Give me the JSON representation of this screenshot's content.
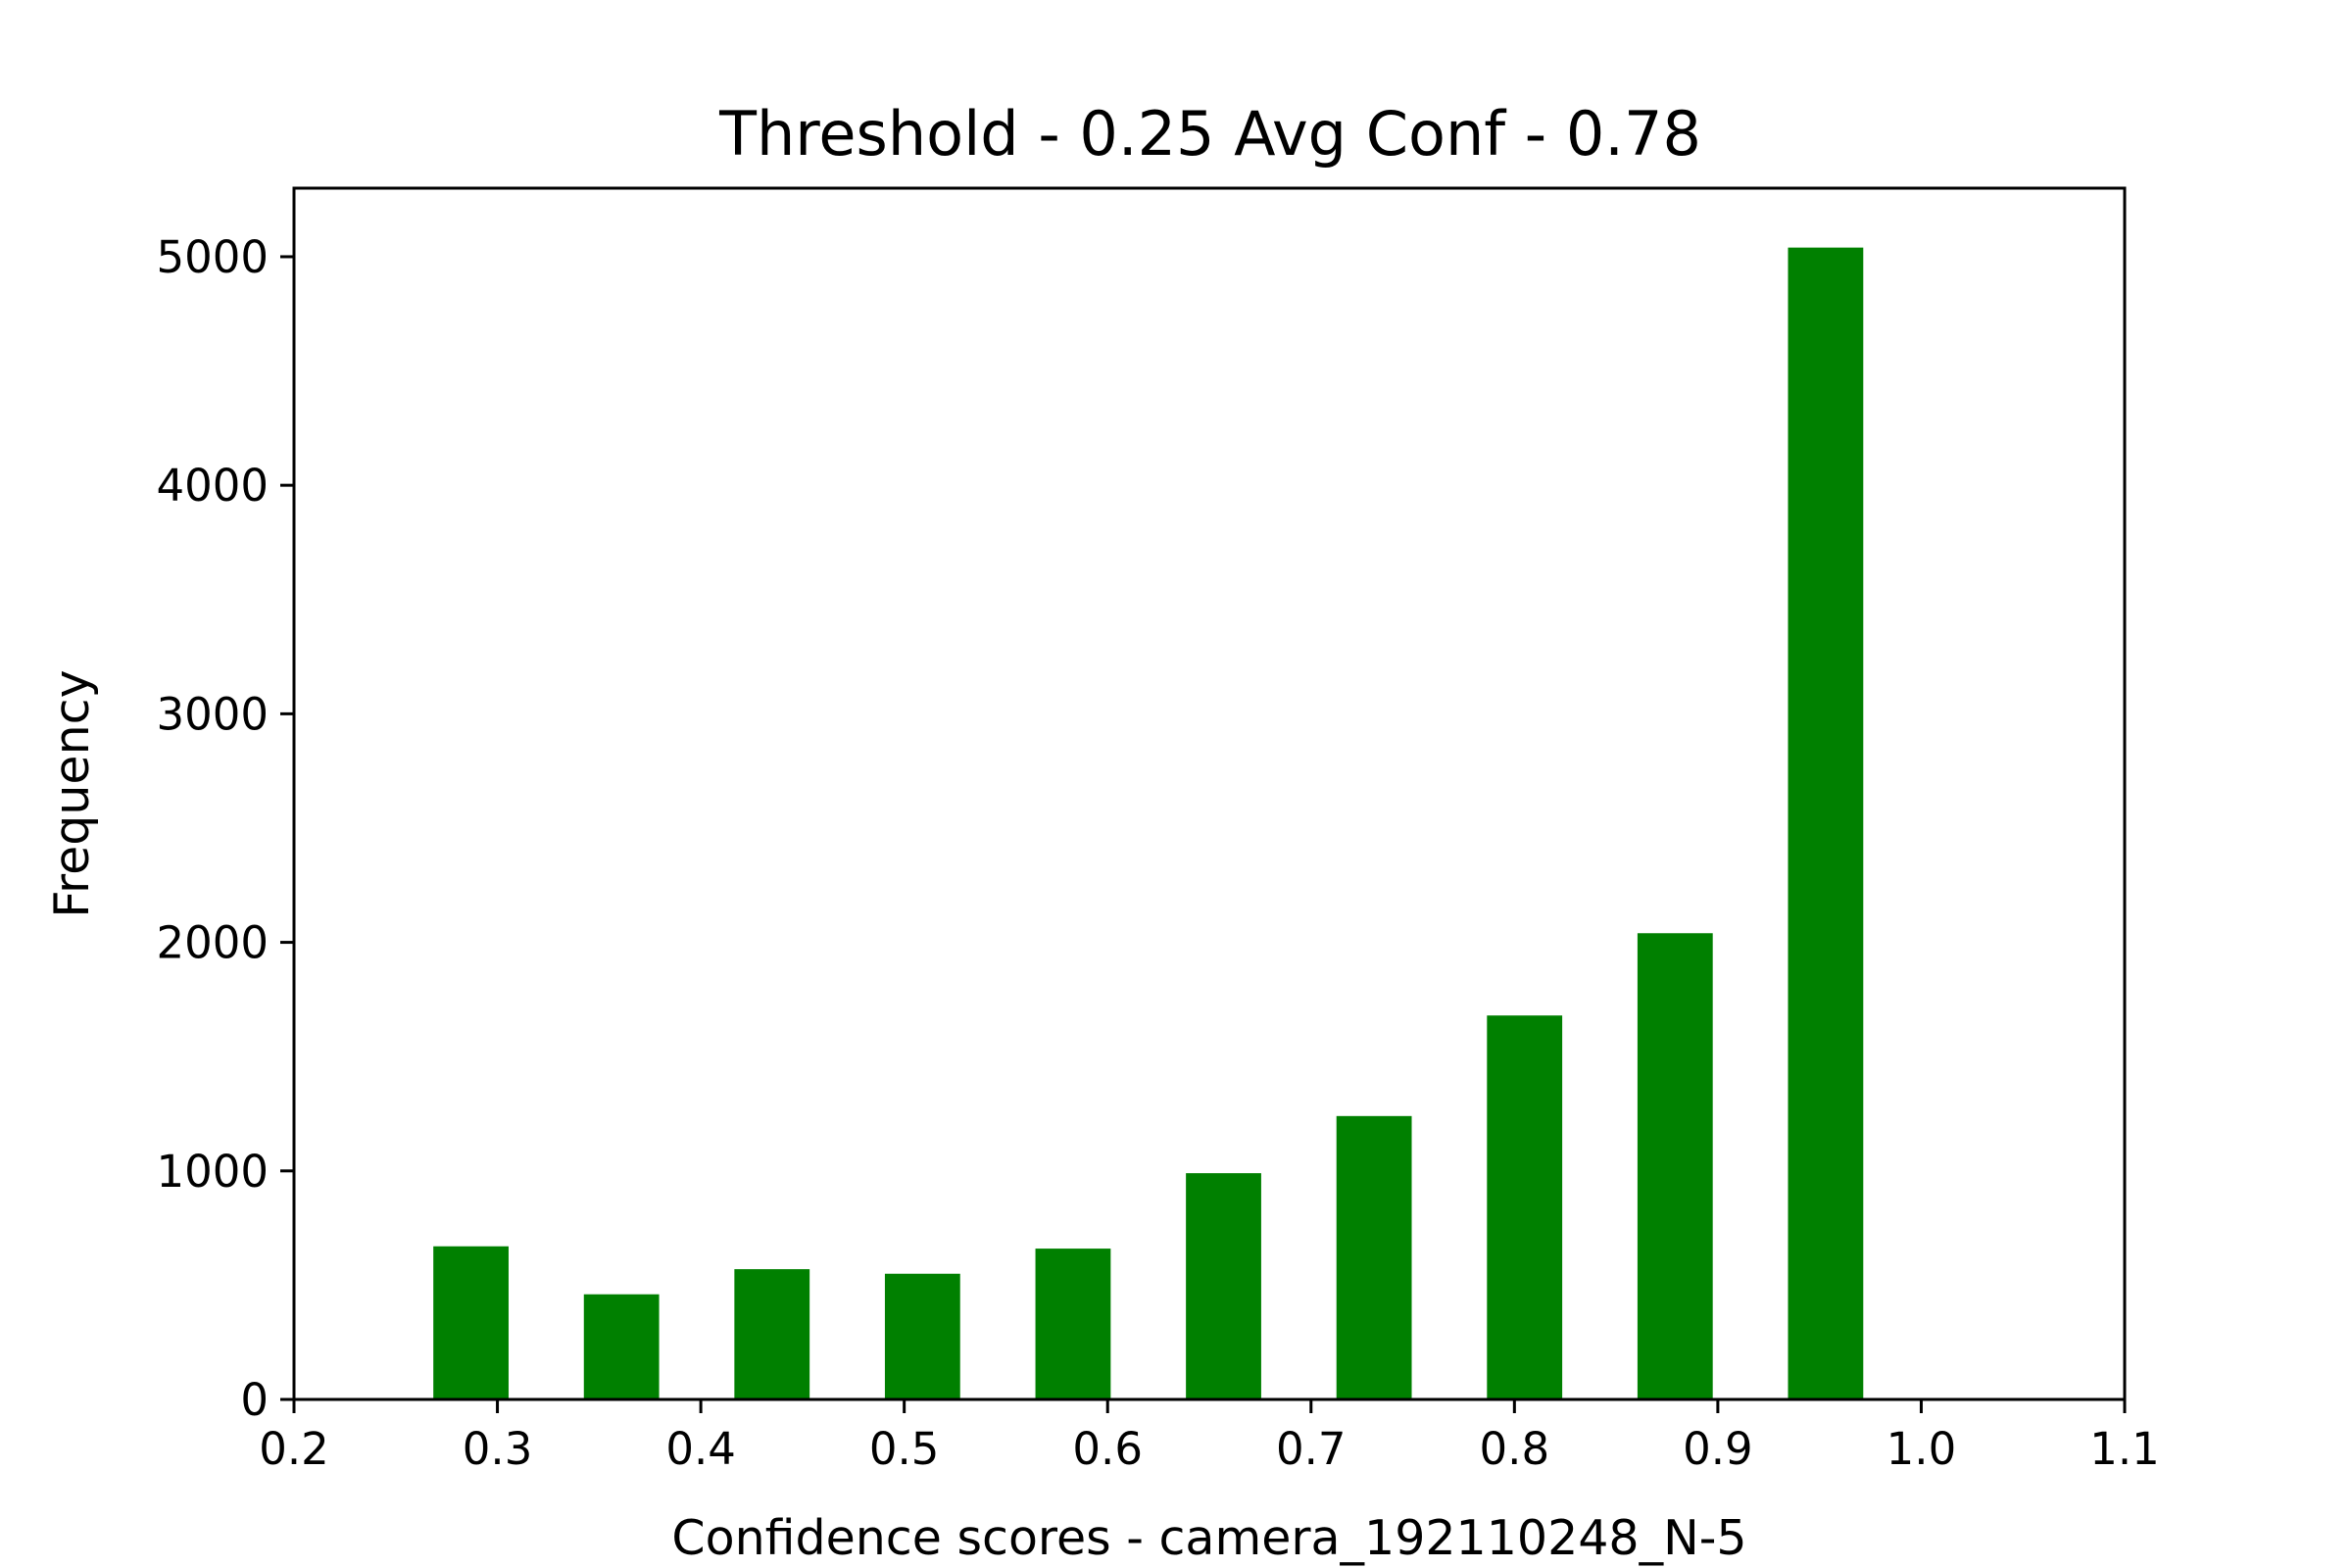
{
  "chart_data": {
    "type": "bar",
    "title": "Threshold - 0.25 Avg Conf - 0.78",
    "xlabel": "Confidence scores - camera_192110248_N-5",
    "ylabel": "Frequency",
    "xlim": [
      0.2,
      1.1
    ],
    "ylim": [
      0,
      5300
    ],
    "bar_color": "#008000",
    "bar_width": 0.037,
    "x_ticks": [
      "0.2",
      "0.3",
      "0.4",
      "0.5",
      "0.6",
      "0.7",
      "0.8",
      "0.9",
      "1.0",
      "1.1"
    ],
    "y_ticks": [
      "0",
      "1000",
      "2000",
      "3000",
      "4000",
      "5000"
    ],
    "x": [
      0.287,
      0.361,
      0.435,
      0.509,
      0.583,
      0.657,
      0.731,
      0.805,
      0.879,
      0.953
    ],
    "values": [
      670,
      460,
      570,
      550,
      660,
      990,
      1240,
      1680,
      2040,
      5040
    ]
  }
}
